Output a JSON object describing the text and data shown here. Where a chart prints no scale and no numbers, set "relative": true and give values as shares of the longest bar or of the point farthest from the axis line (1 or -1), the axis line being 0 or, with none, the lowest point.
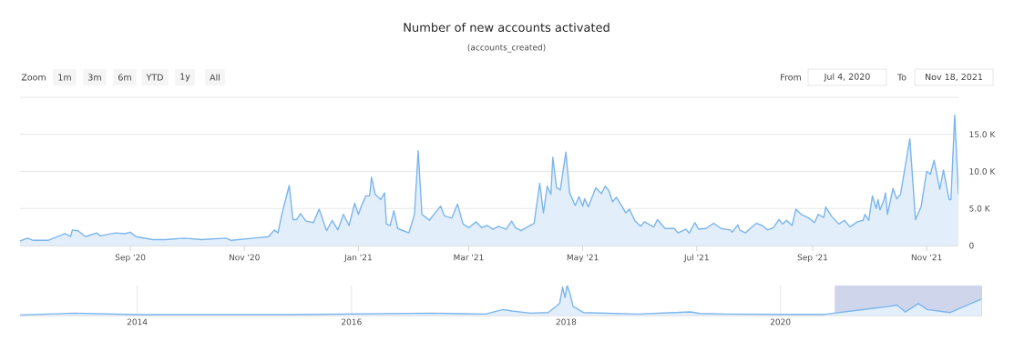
{
  "chart_data": [
    {
      "type": "area",
      "title": "Number of new accounts activated",
      "subtitle": "(accounts_created)",
      "annotations": [
        "Zoom",
        "1m",
        "3m",
        "6m",
        "YTD",
        "1y",
        "All",
        "From",
        "Jul 4, 2020",
        "To",
        "Nov 18, 2021"
      ],
      "color": "#7cb5ec",
      "grid": "y",
      "xlim": [
        "2020-07-04",
        "2021-11-18"
      ],
      "xticks": [
        {
          "value": "2020-09-01",
          "label": "Sep '20"
        },
        {
          "value": "2020-11-01",
          "label": "Nov '20"
        },
        {
          "value": "2021-01-01",
          "label": "Jan '21"
        },
        {
          "value": "2021-03-01",
          "label": "Mar '21"
        },
        {
          "value": "2021-05-01",
          "label": "May '21"
        },
        {
          "value": "2021-07-01",
          "label": "Jul '21"
        },
        {
          "value": "2021-09-01",
          "label": "Sep '21"
        },
        {
          "value": "2021-11-01",
          "label": "Nov '21"
        }
      ],
      "ylim": [
        0,
        20000
      ],
      "yticks": [
        0,
        {
          "value": 5000,
          "label": "5.0 K"
        },
        {
          "value": 10000,
          "label": "10.0 K"
        },
        {
          "value": 15000,
          "label": "15.0 K"
        },
        {
          "value": 20000,
          "label": null
        }
      ],
      "x": [
        "2020-07-04",
        "2020-07-08",
        "2020-07-11",
        "2020-07-19",
        "2020-07-28",
        "2020-07-31",
        "2020-08-01",
        "2020-08-04",
        "2020-08-08",
        "2020-08-14",
        "2020-08-16",
        "2020-08-24",
        "2020-08-29",
        "2020-09-01",
        "2020-09-04",
        "2020-09-13",
        "2020-09-20",
        "2020-09-30",
        "2020-10-09",
        "2020-10-22",
        "2020-10-25",
        "2020-11-06",
        "2020-11-14",
        "2020-11-17",
        "2020-11-19",
        "2020-11-21",
        "2020-11-25",
        "2020-11-27",
        "2020-11-29",
        "2020-12-01",
        "2020-12-04",
        "2020-12-08",
        "2020-12-11",
        "2020-12-15",
        "2020-12-18",
        "2020-12-21",
        "2020-12-24",
        "2020-12-27",
        "2020-12-30",
        "2021-01-01",
        "2021-01-03",
        "2021-01-05",
        "2021-01-07",
        "2021-01-08",
        "2021-01-10",
        "2021-01-13",
        "2021-01-15",
        "2021-01-16",
        "2021-01-18",
        "2021-01-20",
        "2021-01-22",
        "2021-01-26",
        "2021-01-28",
        "2021-01-31",
        "2021-02-02",
        "2021-02-04",
        "2021-02-05",
        "2021-02-08",
        "2021-02-11",
        "2021-02-14",
        "2021-02-16",
        "2021-02-20",
        "2021-02-23",
        "2021-02-26",
        "2021-03-01",
        "2021-03-05",
        "2021-03-08",
        "2021-03-11",
        "2021-03-14",
        "2021-03-17",
        "2021-03-21",
        "2021-03-24",
        "2021-03-26",
        "2021-03-29",
        "2021-04-02",
        "2021-04-05",
        "2021-04-08",
        "2021-04-10",
        "2021-04-12",
        "2021-04-14",
        "2021-04-15",
        "2021-04-17",
        "2021-04-19",
        "2021-04-22",
        "2021-04-24",
        "2021-04-27",
        "2021-04-29",
        "2021-05-01",
        "2021-05-02",
        "2021-05-04",
        "2021-05-08",
        "2021-05-11",
        "2021-05-13",
        "2021-05-15",
        "2021-05-17",
        "2021-05-19",
        "2021-05-22",
        "2021-05-24",
        "2021-05-26",
        "2021-05-29",
        "2021-06-01",
        "2021-06-03",
        "2021-06-08",
        "2021-06-10",
        "2021-06-14",
        "2021-06-19",
        "2021-06-21",
        "2021-06-25",
        "2021-06-27",
        "2021-06-30",
        "2021-07-02",
        "2021-07-06",
        "2021-07-10",
        "2021-07-14",
        "2021-07-19",
        "2021-07-20",
        "2021-07-23",
        "2021-07-24",
        "2021-07-27",
        "2021-07-31",
        "2021-08-02",
        "2021-08-05",
        "2021-08-08",
        "2021-08-11",
        "2021-08-14",
        "2021-08-16",
        "2021-08-18",
        "2021-08-21",
        "2021-08-23",
        "2021-08-26",
        "2021-08-30",
        "2021-09-02",
        "2021-09-04",
        "2021-09-07",
        "2021-09-08",
        "2021-09-11",
        "2021-09-15",
        "2021-09-18",
        "2021-09-21",
        "2021-09-25",
        "2021-09-28",
        "2021-09-29",
        "2021-10-01",
        "2021-10-03",
        "2021-10-05",
        "2021-10-06",
        "2021-10-07",
        "2021-10-09",
        "2021-10-10",
        "2021-10-11",
        "2021-10-14",
        "2021-10-16",
        "2021-10-18",
        "2021-10-23",
        "2021-10-26",
        "2021-10-29",
        "2021-11-01",
        "2021-11-03",
        "2021-11-05",
        "2021-11-08",
        "2021-11-10",
        "2021-11-13",
        "2021-11-14",
        "2021-11-16",
        "2021-11-18"
      ],
      "values": [
        600,
        1000,
        700,
        700,
        1600,
        1200,
        2100,
        2000,
        1200,
        1700,
        1300,
        1700,
        1600,
        1800,
        1200,
        800,
        800,
        1000,
        800,
        1000,
        700,
        1000,
        1200,
        2100,
        1700,
        4200,
        8100,
        3500,
        3500,
        4300,
        3300,
        3100,
        4900,
        2000,
        3400,
        2100,
        4200,
        2700,
        5700,
        4200,
        5600,
        6700,
        6700,
        9200,
        6900,
        6200,
        7100,
        2900,
        2700,
        4700,
        2300,
        1900,
        1700,
        4200,
        12800,
        4200,
        4000,
        3400,
        4400,
        5300,
        4000,
        3700,
        5600,
        2900,
        2400,
        3200,
        2400,
        2700,
        2200,
        2600,
        2200,
        3300,
        2400,
        2000,
        2600,
        3000,
        8400,
        4400,
        8000,
        6900,
        11900,
        7800,
        7500,
        12600,
        7100,
        5400,
        6600,
        5300,
        6300,
        5200,
        7800,
        7000,
        8000,
        7400,
        5900,
        6500,
        5300,
        4400,
        4900,
        3300,
        2600,
        3200,
        2500,
        3500,
        2300,
        2300,
        1700,
        2200,
        1700,
        3100,
        2200,
        2300,
        3000,
        2300,
        2100,
        1800,
        2800,
        2100,
        1700,
        2600,
        3000,
        2700,
        2100,
        2400,
        3500,
        2900,
        3400,
        2700,
        4900,
        4200,
        3700,
        3100,
        4200,
        3800,
        5200,
        4000,
        2900,
        3400,
        2500,
        3200,
        3400,
        4200,
        3400,
        6700,
        5000,
        6200,
        4800,
        6000,
        7100,
        4200,
        7700,
        6300,
        6900,
        14400,
        3500,
        5200,
        10000,
        9600,
        11500,
        7600,
        10200,
        6200,
        6200,
        17600,
        6900
      ]
    },
    {
      "type": "area",
      "relative": true,
      "color": "#7cb5ec",
      "grid": "x",
      "tick_labels": "x",
      "xlim": [
        "2012-11-28",
        "2021-11-18"
      ],
      "xticks": [
        {
          "value": "2014-01-01",
          "label": "2014"
        },
        {
          "value": "2016-01-01",
          "label": "2016"
        },
        {
          "value": "2018-01-01",
          "label": "2018"
        },
        {
          "value": "2020-01-01",
          "label": "2020"
        }
      ],
      "bands": [
        {
          "axis": "x",
          "from": "2020-07-04",
          "to": "2021-11-18",
          "color": "#cfd6ec"
        }
      ],
      "x": [
        "2012-11-28",
        "2013-06-01",
        "2014-01-01",
        "2014-06-01",
        "2015-06-01",
        "2016-10-01",
        "2017-04-01",
        "2017-06-01",
        "2017-07-01",
        "2017-09-01",
        "2017-11-01",
        "2017-12-10",
        "2017-12-20",
        "2017-12-28",
        "2018-01-05",
        "2018-01-15",
        "2018-01-25",
        "2018-03-01",
        "2018-09-01",
        "2019-03-01",
        "2019-04-01",
        "2019-07-01",
        "2020-01-01",
        "2020-06-01",
        "2020-11-20",
        "2021-01-01",
        "2021-02-01",
        "2021-03-01",
        "2021-04-15",
        "2021-05-15",
        "2021-08-01",
        "2021-10-23",
        "2021-11-16"
      ],
      "values": [
        0.02,
        0.08,
        0.03,
        0.03,
        0.03,
        0.08,
        0.05,
        0.2,
        0.15,
        0.08,
        0.1,
        0.4,
        0.95,
        0.6,
        1,
        0.7,
        0.3,
        0.1,
        0.05,
        0.12,
        0.07,
        0.05,
        0.04,
        0.04,
        0.25,
        0.3,
        0.35,
        0.12,
        0.4,
        0.2,
        0.1,
        0.45,
        0.55
      ]
    }
  ]
}
